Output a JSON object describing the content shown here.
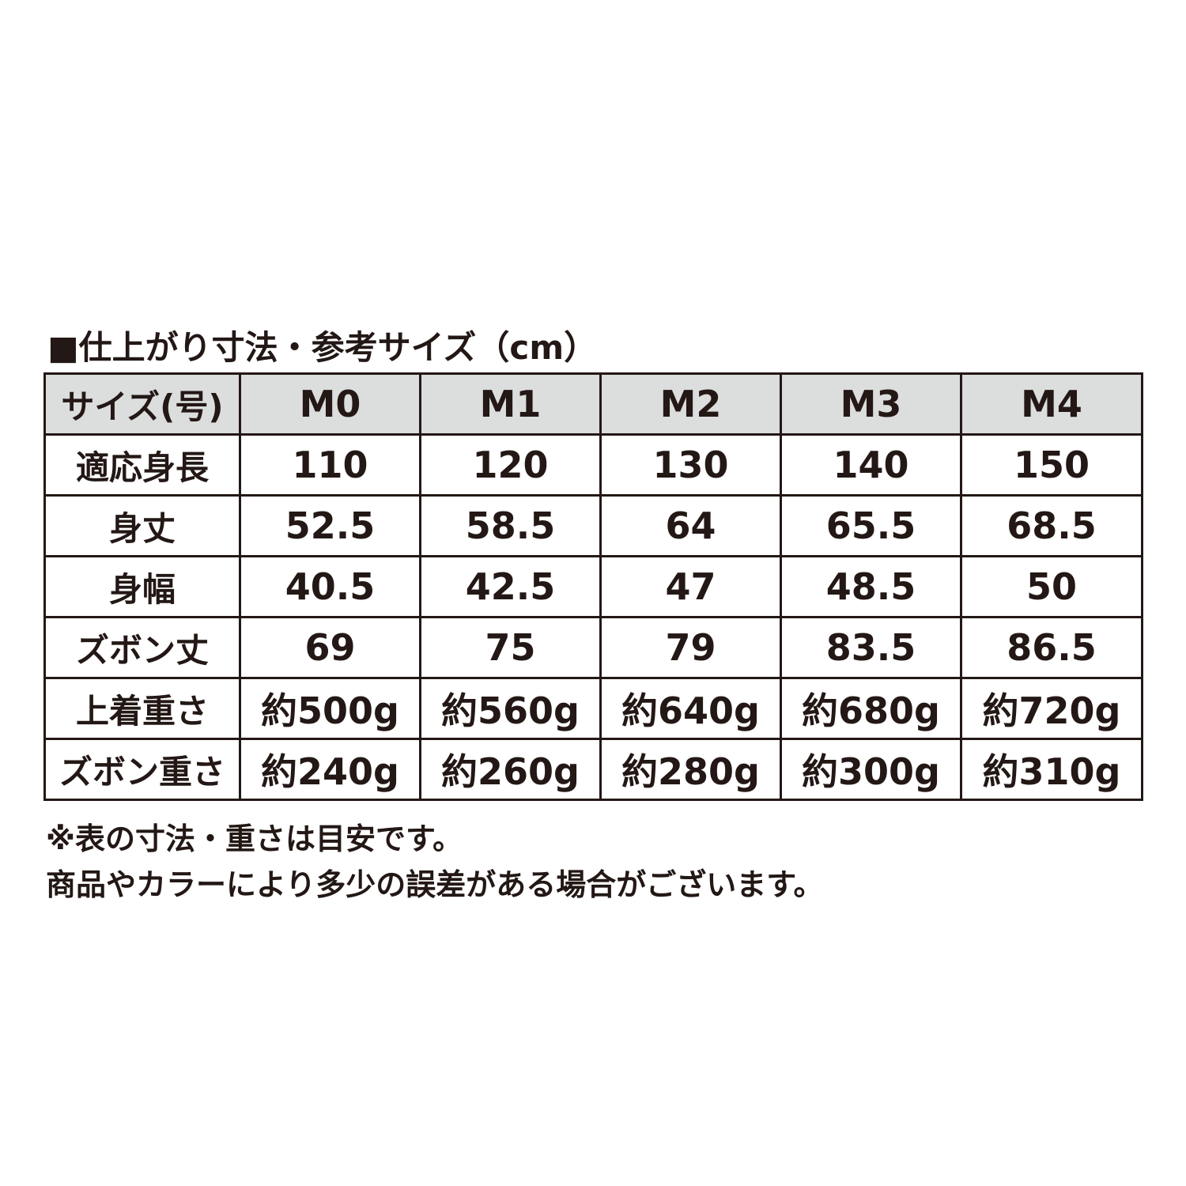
{
  "title": "■仕上がり寸法・参考サイズ（cm）",
  "table": {
    "header": [
      "サイズ(号)",
      "M0",
      "M1",
      "M2",
      "M3",
      "M4"
    ],
    "rows": [
      [
        "適応身長",
        "110",
        "120",
        "130",
        "140",
        "150"
      ],
      [
        "身丈",
        "52.5",
        "58.5",
        "64",
        "65.5",
        "68.5"
      ],
      [
        "身幅",
        "40.5",
        "42.5",
        "47",
        "48.5",
        "50"
      ],
      [
        "ズボン丈",
        "69",
        "75",
        "79",
        "83.5",
        "86.5"
      ],
      [
        "上着重さ",
        "約500g",
        "約560g",
        "約640g",
        "約680g",
        "約720g"
      ],
      [
        "ズボン重さ",
        "約240g",
        "約260g",
        "約280g",
        "約300g",
        "約310g"
      ]
    ]
  },
  "notes": [
    "※表の寸法・重さは目安です。",
    "商品やカラーにより多少の誤差がある場合がございます。"
  ],
  "colors": {
    "text": "#231815",
    "header_bg": "#dcdddd",
    "border": "#231815"
  }
}
